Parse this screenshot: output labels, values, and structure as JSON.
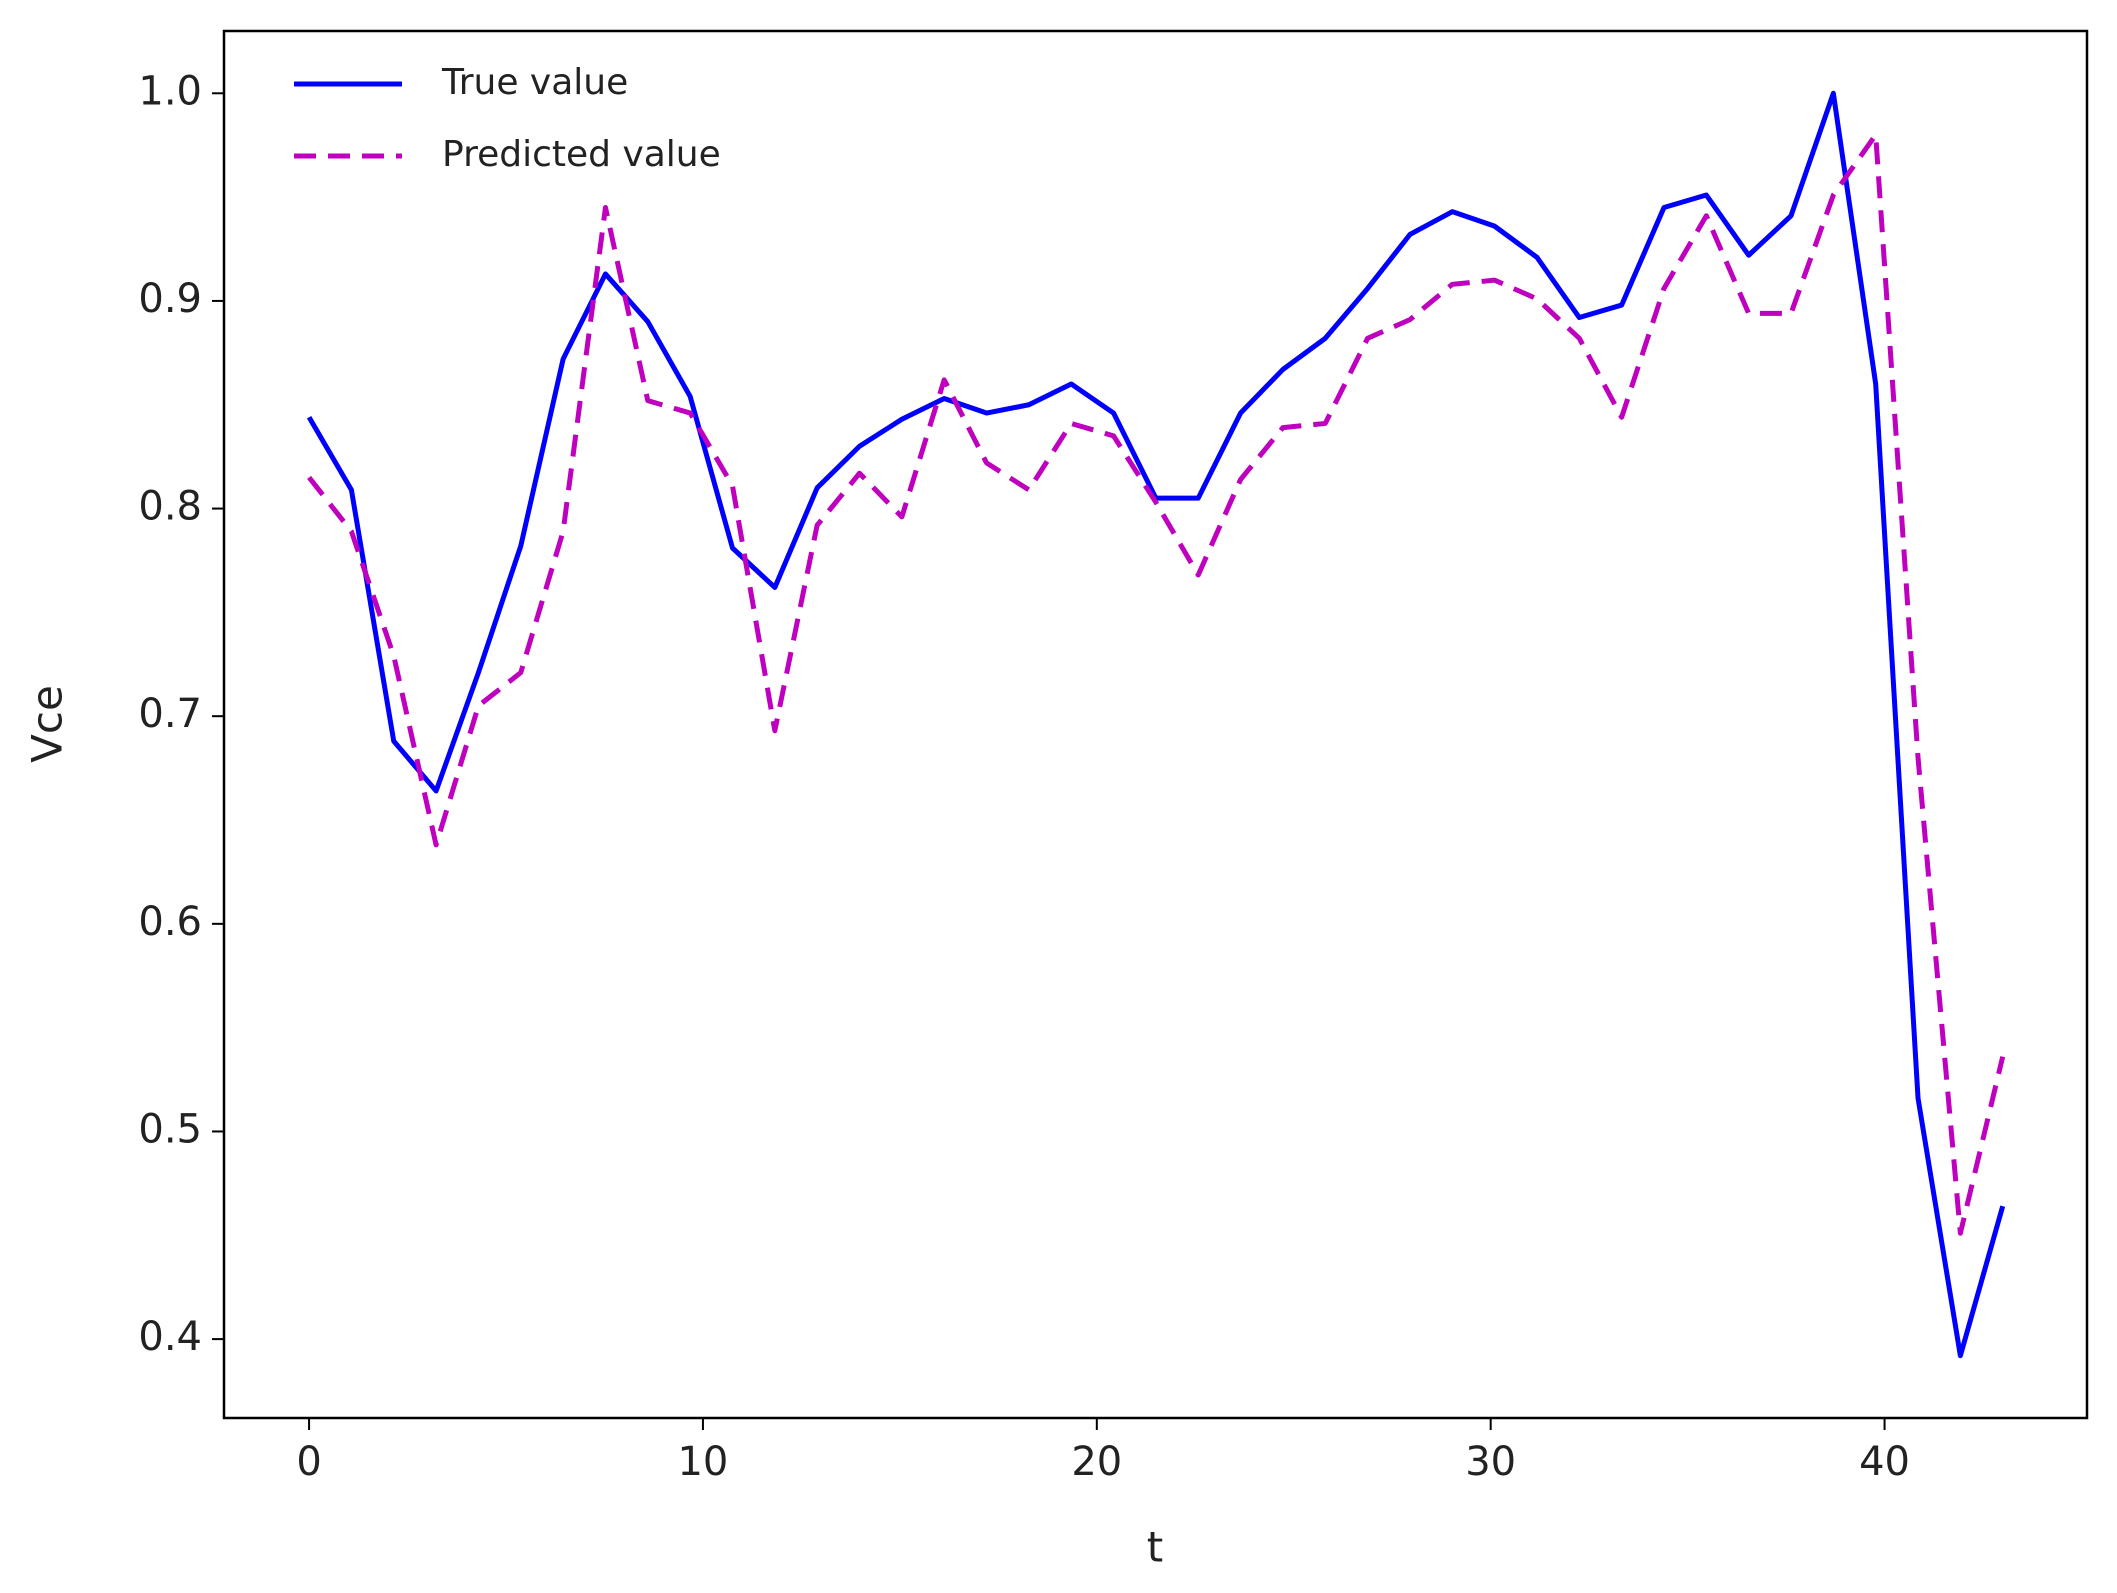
{
  "chart_data": {
    "type": "line",
    "x_label": "t",
    "y_label": "Vce",
    "x": [
      0,
      1.075,
      2.15,
      3.225,
      4.3,
      5.375,
      6.45,
      7.525,
      8.6,
      9.675,
      10.75,
      11.825,
      12.9,
      13.975,
      15.05,
      16.125,
      17.2,
      18.275,
      19.35,
      20.425,
      21.5,
      22.575,
      23.65,
      24.725,
      25.8,
      26.875,
      27.95,
      29.025,
      30.1,
      31.175,
      32.25,
      33.325,
      34.4,
      35.475,
      36.55,
      37.625,
      38.7,
      39.775,
      40.85,
      41.925,
      43
    ],
    "series": [
      {
        "name": "True value",
        "color": "#0000ff",
        "dash": "solid",
        "values": [
          0.844,
          0.809,
          0.688,
          0.664,
          0.721,
          0.782,
          0.872,
          0.913,
          0.89,
          0.854,
          0.781,
          0.762,
          0.81,
          0.83,
          0.843,
          0.853,
          0.846,
          0.85,
          0.86,
          0.846,
          0.805,
          0.805,
          0.846,
          0.867,
          0.882,
          0.906,
          0.932,
          0.943,
          0.936,
          0.921,
          0.892,
          0.898,
          0.945,
          0.951,
          0.922,
          0.941,
          1.0,
          0.86,
          0.516,
          0.392,
          0.464
        ]
      },
      {
        "name": "Predicted value",
        "color": "#bf00bf",
        "dash": "dashed",
        "values": [
          0.815,
          0.789,
          0.729,
          0.638,
          0.705,
          0.721,
          0.789,
          0.945,
          0.852,
          0.846,
          0.811,
          0.693,
          0.792,
          0.817,
          0.796,
          0.862,
          0.822,
          0.809,
          0.841,
          0.835,
          0.803,
          0.768,
          0.814,
          0.839,
          0.841,
          0.882,
          0.891,
          0.908,
          0.91,
          0.901,
          0.882,
          0.844,
          0.906,
          0.941,
          0.894,
          0.894,
          0.951,
          0.98,
          0.68,
          0.451,
          0.536
        ]
      }
    ],
    "xlim": [
      -2.16,
      45.14
    ],
    "ylim": [
      0.362,
      1.03
    ],
    "xticks": [
      0,
      10,
      20,
      30,
      40
    ],
    "yticks": [
      0.4,
      0.5,
      0.6,
      0.7,
      0.8,
      0.9,
      {
        "value": 1,
        "label": "1.0"
      }
    ],
    "legend": "upper left",
    "grid": false
  }
}
